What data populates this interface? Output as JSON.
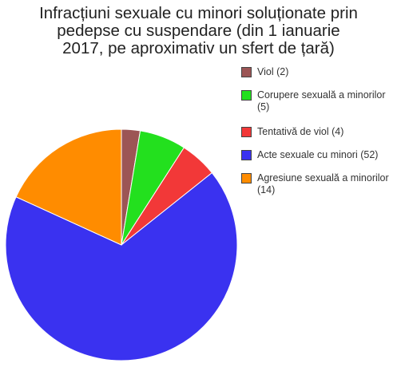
{
  "title_lines": [
    "Infracțiuni sexuale cu minori soluționate prin",
    "pedepse cu suspendare (din 1 ianuarie",
    "2017, pe aproximativ un sfert de țară)"
  ],
  "chart_data": {
    "type": "pie",
    "title": "Infracțiuni sexuale cu minori soluționate prin pedepse cu suspendare (din 1 ianuarie 2017, pe aproximativ un sfert de țară)",
    "legend_position": "right",
    "start_angle_deg": 0,
    "direction": "clockwise",
    "slices": [
      {
        "label": "Viol (2)",
        "value": 2,
        "color": "#9c5555"
      },
      {
        "label": "Corupere sexuală a minorilor (5)",
        "value": 5,
        "color": "#23e01e"
      },
      {
        "label": "Tentativă de viol (4)",
        "value": 4,
        "color": "#f23838"
      },
      {
        "label": "Acte sexuale cu minori (52)",
        "value": 52,
        "color": "#3a32f0"
      },
      {
        "label": "Agresiune sexuală a minorilor (14)",
        "value": 14,
        "color": "#ff8c00"
      }
    ]
  }
}
